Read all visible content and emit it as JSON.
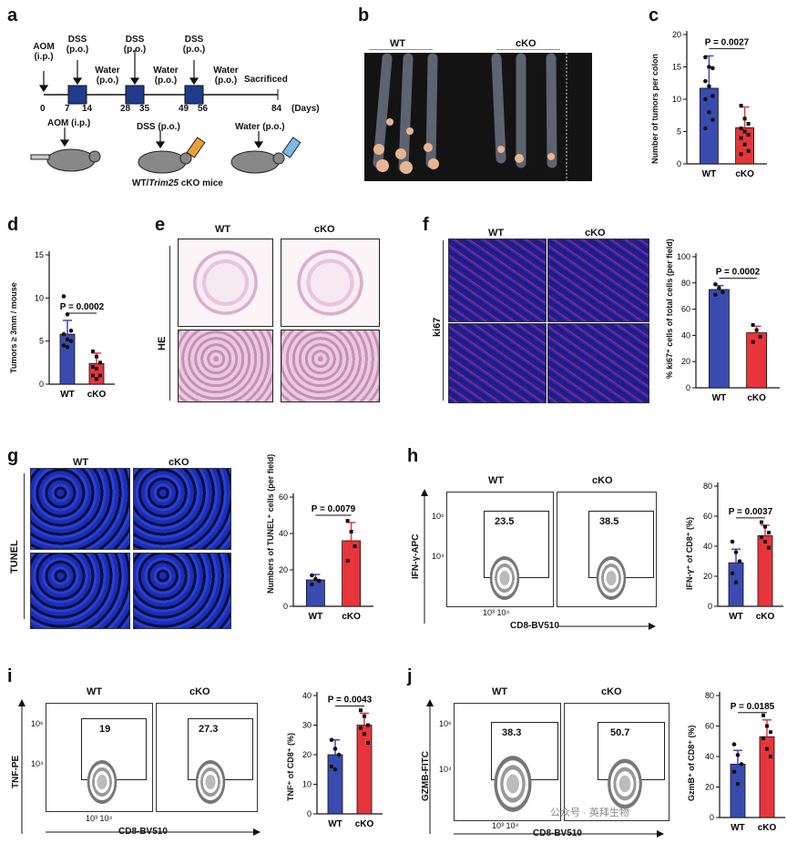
{
  "panels": [
    "a",
    "b",
    "c",
    "d",
    "e",
    "f",
    "g",
    "h",
    "i",
    "j"
  ],
  "a": {
    "top_labels": [
      {
        "l1": "AOM",
        "l2": "(i.p.)"
      },
      {
        "l1": "DSS",
        "l2": "(p.o.)"
      },
      {
        "l1": "DSS",
        "l2": "(p.o.)"
      },
      {
        "l1": "DSS",
        "l2": "(p.o.)"
      }
    ],
    "water_labels": [
      {
        "l1": "Water",
        "l2": "(p.o.)"
      },
      {
        "l1": "Water",
        "l2": "(p.o.)"
      },
      {
        "l1": "Water",
        "l2": "(p.o.)"
      }
    ],
    "sacrificed": "Sacrificed",
    "days": [
      "0",
      "7",
      "14",
      "28",
      "35",
      "49",
      "56",
      "84"
    ],
    "days_unit": "(Days)",
    "mouse_labels": [
      "AOM (i.p.)",
      "DSS (p.o.)",
      "Water (p.o.)"
    ],
    "caption_pre": "WT/",
    "caption_italic": "Trim25",
    "caption_post": " cKO mice"
  },
  "b": {
    "wt": "WT",
    "cko": "cKO"
  },
  "c": {
    "p": "P = 0.0027",
    "ylabel": "Number of tumors per colon",
    "ticks": [
      "0",
      "5",
      "10",
      "15",
      "20"
    ],
    "groups": [
      "WT",
      "cKO"
    ]
  },
  "d": {
    "p": "P = 0.0002",
    "ylabel": "Tumors ≥ 3mm / mouse",
    "ticks": [
      "0",
      "5",
      "10",
      "15"
    ],
    "groups": [
      "WT",
      "cKO"
    ]
  },
  "e": {
    "wt": "WT",
    "cko": "cKO",
    "row": "HE"
  },
  "f": {
    "wt": "WT",
    "cko": "cKO",
    "row": "ki67",
    "p": "P = 0.0002",
    "ylabel": "% ki67⁺ cells of total cells (per field)",
    "ticks": [
      "0",
      "20",
      "40",
      "60",
      "80",
      "100"
    ],
    "groups": [
      "WT",
      "cKO"
    ]
  },
  "g": {
    "wt": "WT",
    "cko": "cKO",
    "row": "TUNEL",
    "p": "P = 0.0079",
    "ylabel": "Numbers of TUNEL⁺ cells (per field)",
    "ticks": [
      "0",
      "20",
      "40",
      "60"
    ],
    "groups": [
      "WT",
      "cKO"
    ]
  },
  "h": {
    "wt": "WT",
    "cko": "cKO",
    "yaxis": "IFN-γ-APC",
    "xaxis": "CD8-BV510",
    "gate_wt": "23.5",
    "gate_cko": "38.5",
    "ytick_hi": "10⁶",
    "ytick_lo": "10⁴",
    "xticks": "10³ 10⁴",
    "p": "P = 0.0037",
    "ylabel": "IFN-γ⁺ of CD8⁺ (%)",
    "ticks": [
      "0",
      "20",
      "40",
      "60",
      "80"
    ],
    "groups": [
      "WT",
      "cKO"
    ]
  },
  "i": {
    "wt": "WT",
    "cko": "cKO",
    "yaxis": "TNF-PE",
    "xaxis": "CD8-BV510",
    "gate_wt": "19",
    "gate_cko": "27.3",
    "ytick_hi": "10⁶",
    "ytick_lo": "10⁴",
    "xticks": "10³ 10⁴",
    "p": "P = 0.0043",
    "ylabel": "TNF⁺ of CD8⁺ (%)",
    "ticks": [
      "0",
      "10",
      "20",
      "30",
      "40"
    ],
    "groups": [
      "WT",
      "cKO"
    ]
  },
  "j": {
    "wt": "WT",
    "cko": "cKO",
    "yaxis": "GZMB-FITC",
    "xaxis": "CD8-BV510",
    "gate_wt": "38.3",
    "gate_cko": "50.7",
    "ytick_hi": "10⁶",
    "ytick_lo": "10⁴",
    "xticks": "10³ 10⁴",
    "p": "P = 0.0185",
    "ylabel": "GzmB⁺ of CD8⁺ (%)",
    "ticks": [
      "0",
      "20",
      "40",
      "60",
      "80"
    ],
    "groups": [
      "WT",
      "cKO"
    ]
  },
  "watermark": "公众号 · 英拜生物",
  "colors": {
    "wt": "#3a4bb0",
    "cko": "#e8343b"
  },
  "chart_data": [
    {
      "type": "bar",
      "panel": "c",
      "categories": [
        "WT",
        "cKO"
      ],
      "values": [
        11.7,
        5.6
      ],
      "errors": [
        5.0,
        3.2
      ],
      "ylim": [
        0,
        20
      ],
      "points": [
        [
          16.5,
          15,
          14.8,
          12.8,
          12,
          10.5,
          10,
          8,
          6.8,
          5.5
        ],
        [
          9,
          7,
          6.2,
          5.5,
          5,
          4.5,
          4,
          3,
          2,
          1.5
        ]
      ]
    },
    {
      "type": "bar",
      "panel": "d",
      "categories": [
        "WT",
        "cKO"
      ],
      "values": [
        5.8,
        2.4
      ],
      "errors": [
        1.6,
        1.2
      ],
      "ylim": [
        0,
        15
      ],
      "points": [
        [
          10.2,
          8.1,
          6.2,
          5.8,
          5.2,
          5.0,
          4.5,
          4.3
        ],
        [
          3.8,
          3.2,
          2.5,
          2.0,
          1.8,
          1.0,
          1.0,
          0.6
        ]
      ]
    },
    {
      "type": "bar",
      "panel": "f",
      "categories": [
        "WT",
        "cKO"
      ],
      "values": [
        75,
        42
      ],
      "errors": [
        3,
        5
      ],
      "ylim": [
        0,
        100
      ],
      "points": [
        [
          79,
          76,
          73,
          71
        ],
        [
          48,
          44,
          39,
          35
        ]
      ]
    },
    {
      "type": "bar",
      "panel": "g",
      "categories": [
        "WT",
        "cKO"
      ],
      "values": [
        14.5,
        36
      ],
      "errors": [
        3,
        10
      ],
      "ylim": [
        0,
        60
      ],
      "points": [
        [
          17,
          15,
          14,
          12
        ],
        [
          47,
          41,
          33,
          25
        ]
      ]
    },
    {
      "type": "bar",
      "panel": "h",
      "categories": [
        "WT",
        "cKO"
      ],
      "values": [
        29,
        47
      ],
      "errors": [
        9,
        7
      ],
      "ylim": [
        0,
        80
      ],
      "points": [
        [
          43,
          36,
          30,
          22,
          16
        ],
        [
          56,
          53,
          49,
          46,
          43,
          39
        ]
      ]
    },
    {
      "type": "bar",
      "panel": "i",
      "categories": [
        "WT",
        "cKO"
      ],
      "values": [
        20,
        30
      ],
      "errors": [
        5,
        4
      ],
      "ylim": [
        0,
        40
      ],
      "points": [
        [
          25,
          22,
          20,
          16,
          15
        ],
        [
          35,
          33,
          30,
          29,
          27,
          24
        ]
      ]
    },
    {
      "type": "bar",
      "panel": "j",
      "categories": [
        "WT",
        "cKO"
      ],
      "values": [
        35,
        53
      ],
      "errors": [
        9,
        11
      ],
      "ylim": [
        0,
        80
      ],
      "points": [
        [
          48,
          41,
          35,
          30,
          22
        ],
        [
          67,
          60,
          56,
          52,
          45,
          40
        ]
      ]
    }
  ]
}
